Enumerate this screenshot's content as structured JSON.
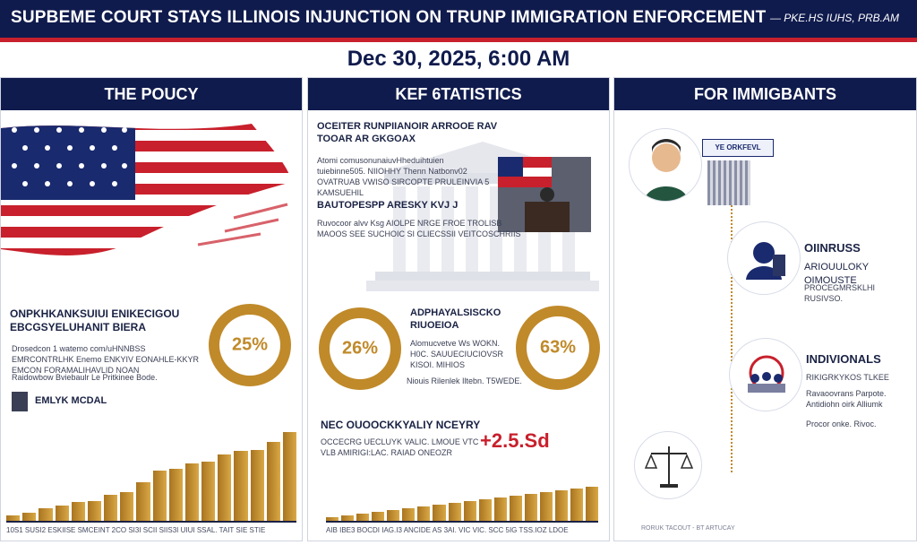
{
  "header": {
    "headline": "SUPBEME COURT STAYS ILLINOIS INJUNCTION ON TRUNP IMMIGRATION ENFORCEMENT",
    "byline": "— PKE.HS IUHS, PRB.AM",
    "date": "Dec 30, 2025, 6:00 AM"
  },
  "panels": {
    "policy": {
      "heading": "THE POUCY",
      "title": "ONPKHKANKSUIUI ENIKECIGOU EBCGSYELUHANIT BIERA",
      "body": "Drosedcon 1 watemo com/uHNNBSS EMRCONTRLHK Enemo ENKYIV EONAHLE-KKYR EMCON FORAMALIHAVLID NOAN",
      "note": "Raidowbow Bviebaulr Le Pritkinee Bode.",
      "key": "EMLYK MCDAL",
      "donut": "25%",
      "chart_axis": "10S1 SUSI2 ESKIISE SMCEINT 2CO SI3I SCII SIIS3I UIUI SSAL. TAIT SIE STIE"
    },
    "stats": {
      "heading": "KEF 6TATISTICS",
      "title": "OCEITER RUNPIIANOIR ARROOE RAV TOOAR AR GKGOAX",
      "body1": "Atomi comusonunaiuvHheduihtuien tuiebinne505. NIIOHHY Thenn Natbonv02 OVATRUAB VWISO SIRCOPTE PRULEINVIA 5 KAMSUEHIL",
      "subtitle": "BAUTOPESPP ARESKY KVJ J",
      "body2": "Ruvocoor alvv Ksg AIOLPE NRGE FROE TROLISB MAOOS SEE SUCHOIC SI CLIECSSII VEITCOSCHRIIS",
      "donut_left": "26%",
      "donut_right": "63%",
      "donut_title": "ADPHAYALSISCKO RIUOEIOA",
      "donut_body": "Alomucvetve Ws WOKN. H0C. SAUUECIUCIOVSR KISOI. MIHIOS",
      "donut_note": "Niouis Rilenlek Iltebn. T5WEDE.",
      "bottom_title": "NEC OUOOCKKYALIY NCEYRY",
      "bottom_body": "OCCECRG UECLUYK VALIC. LMOUE VTC VLB AMIRIGI:LAC. RAIAD ONEOZR",
      "big_number": "+2.5.Sd",
      "chart_axis": "AIB IBE3 BOCDI IAG.I3 ANCIDE AS 3AI. VIC VIC. SCC 5IG TSS.IOZ LDOE"
    },
    "immigrants": {
      "heading": "FOR IMMIGBANTS",
      "badge": "YE ORKFEVL",
      "item1_title": "OIINRUSS",
      "item1_sub": "ARIOUULOKY OIMOUSTE",
      "item1_body": "PROCEGMRSKLHI RUSIVSO.",
      "item2_title": "INDIVIONALS",
      "item2_sub": "RIKIGRKYKOS TLKEE",
      "item2_body": "Ravaoovrans Parpote. Antidiohn oirk Alliumk",
      "item2_note": "Procor onke. Rivoc.",
      "footer": "RORUK TACOUT - BT ARTUCAY"
    }
  },
  "chart_data": [
    {
      "type": "bar",
      "values": [
        5,
        7,
        11,
        14,
        17,
        18,
        23,
        26,
        35,
        45,
        47,
        52,
        53,
        60,
        63,
        64,
        71,
        80
      ],
      "ylim": [
        0,
        100
      ]
    },
    {
      "type": "bar",
      "values": [
        2,
        3,
        4,
        5,
        6,
        7,
        8,
        9,
        10,
        11,
        12,
        13,
        14,
        15,
        16,
        17,
        18,
        19
      ],
      "ylim": [
        0,
        25
      ]
    }
  ],
  "colors": {
    "navy": "#101b4d",
    "red": "#c8202c",
    "gold": "#c08a2a"
  }
}
